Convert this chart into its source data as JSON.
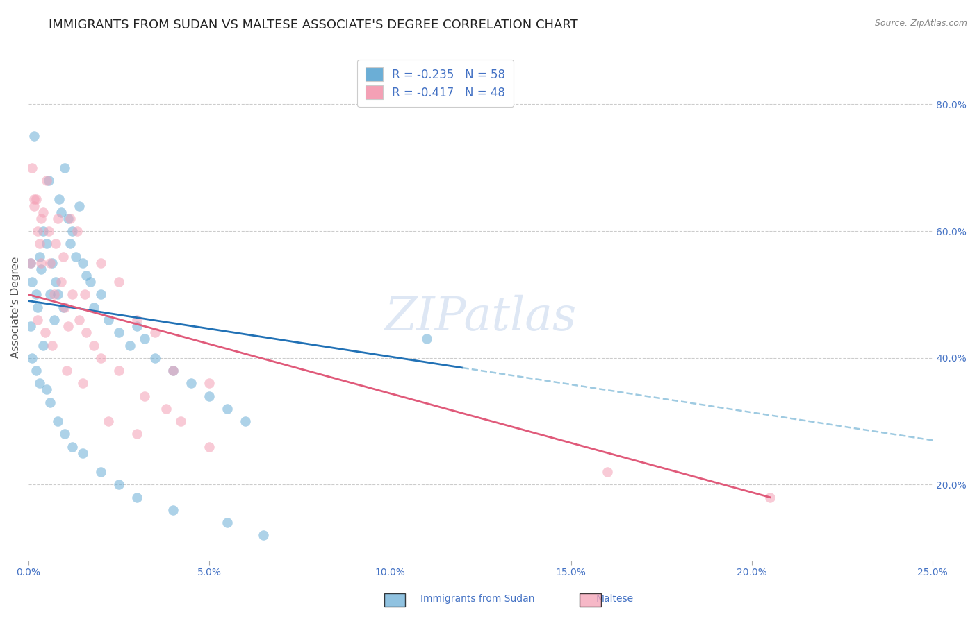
{
  "title": "IMMIGRANTS FROM SUDAN VS MALTESE ASSOCIATE'S DEGREE CORRELATION CHART",
  "source": "Source: ZipAtlas.com",
  "ylabel": "Associate's Degree",
  "x_tick_labels": [
    "0.0%",
    "5.0%",
    "10.0%",
    "15.0%",
    "20.0%",
    "25.0%"
  ],
  "x_tick_values": [
    0.0,
    5.0,
    10.0,
    15.0,
    20.0,
    25.0
  ],
  "y_tick_labels": [
    "20.0%",
    "40.0%",
    "60.0%",
    "80.0%"
  ],
  "y_tick_values": [
    20.0,
    40.0,
    60.0,
    80.0
  ],
  "xlim": [
    0.0,
    25.0
  ],
  "ylim": [
    8.0,
    88.0
  ],
  "legend_r1": "R = -0.235   N = 58",
  "legend_r2": "R = -0.417   N = 48",
  "watermark": "ZIPatlas",
  "blue_scatter_x": [
    0.05,
    0.1,
    0.15,
    0.2,
    0.25,
    0.3,
    0.35,
    0.4,
    0.5,
    0.55,
    0.6,
    0.65,
    0.7,
    0.75,
    0.8,
    0.85,
    0.9,
    0.95,
    1.0,
    1.1,
    1.15,
    1.2,
    1.3,
    1.4,
    1.5,
    1.6,
    1.7,
    1.8,
    2.0,
    2.2,
    2.5,
    2.8,
    3.0,
    3.2,
    3.5,
    4.0,
    4.5,
    5.0,
    5.5,
    6.0,
    0.05,
    0.1,
    0.2,
    0.3,
    0.4,
    0.5,
    0.6,
    0.8,
    1.0,
    1.2,
    1.5,
    2.0,
    2.5,
    3.0,
    4.0,
    5.5,
    6.5,
    11.0
  ],
  "blue_scatter_y": [
    55.0,
    52.0,
    75.0,
    50.0,
    48.0,
    56.0,
    54.0,
    60.0,
    58.0,
    68.0,
    50.0,
    55.0,
    46.0,
    52.0,
    50.0,
    65.0,
    63.0,
    48.0,
    70.0,
    62.0,
    58.0,
    60.0,
    56.0,
    64.0,
    55.0,
    53.0,
    52.0,
    48.0,
    50.0,
    46.0,
    44.0,
    42.0,
    45.0,
    43.0,
    40.0,
    38.0,
    36.0,
    34.0,
    32.0,
    30.0,
    45.0,
    40.0,
    38.0,
    36.0,
    42.0,
    35.0,
    33.0,
    30.0,
    28.0,
    26.0,
    25.0,
    22.0,
    20.0,
    18.0,
    16.0,
    14.0,
    12.0,
    43.0
  ],
  "pink_scatter_x": [
    0.05,
    0.1,
    0.15,
    0.2,
    0.25,
    0.3,
    0.35,
    0.4,
    0.5,
    0.6,
    0.7,
    0.8,
    0.9,
    1.0,
    1.1,
    1.2,
    1.4,
    1.6,
    1.8,
    2.0,
    2.5,
    3.0,
    3.5,
    4.0,
    5.0,
    0.15,
    0.35,
    0.55,
    0.75,
    0.95,
    1.15,
    1.35,
    1.55,
    2.0,
    2.5,
    3.2,
    4.2,
    0.25,
    0.45,
    0.65,
    1.05,
    1.5,
    2.2,
    3.0,
    5.0,
    16.0,
    20.5,
    3.8
  ],
  "pink_scatter_y": [
    55.0,
    70.0,
    65.0,
    65.0,
    60.0,
    58.0,
    55.0,
    63.0,
    68.0,
    55.0,
    50.0,
    62.0,
    52.0,
    48.0,
    45.0,
    50.0,
    46.0,
    44.0,
    42.0,
    55.0,
    52.0,
    46.0,
    44.0,
    38.0,
    36.0,
    64.0,
    62.0,
    60.0,
    58.0,
    56.0,
    62.0,
    60.0,
    50.0,
    40.0,
    38.0,
    34.0,
    30.0,
    46.0,
    44.0,
    42.0,
    38.0,
    36.0,
    30.0,
    28.0,
    26.0,
    22.0,
    18.0,
    32.0
  ],
  "blue_line_x0": 0.0,
  "blue_line_x1": 25.0,
  "blue_line_y0": 49.0,
  "blue_line_y1": 27.0,
  "blue_solid_x1": 12.0,
  "pink_line_x0": 0.0,
  "pink_line_x1": 20.5,
  "pink_line_y0": 50.0,
  "pink_line_y1": 18.0,
  "dot_color_blue": "#6baed6",
  "dot_color_pink": "#f4a0b5",
  "line_color_blue": "#2171b5",
  "line_color_pink": "#e05a7a",
  "dash_color_blue": "#9ecae1",
  "background_color": "#ffffff",
  "grid_color": "#cccccc",
  "title_fontsize": 13,
  "axis_label_fontsize": 11,
  "tick_fontsize": 10,
  "scatter_alpha": 0.55,
  "scatter_size": 110,
  "legend_fontsize": 12
}
